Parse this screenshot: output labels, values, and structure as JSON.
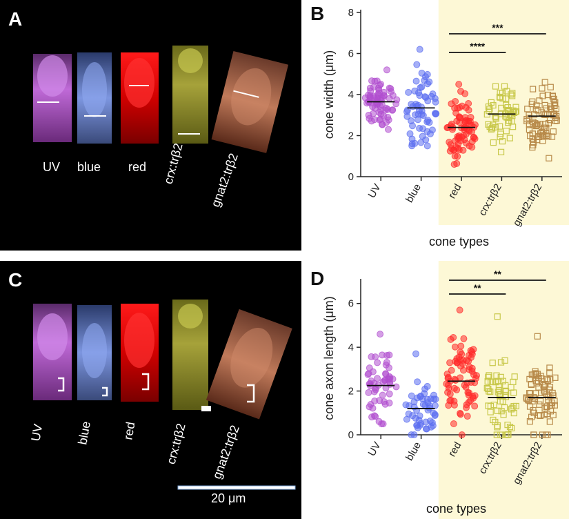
{
  "panels": {
    "A": {
      "letter": "A"
    },
    "B": {
      "letter": "B"
    },
    "C": {
      "letter": "C",
      "scale_bar_label": "20 μm"
    },
    "D": {
      "letter": "D"
    }
  },
  "image_labels": [
    "UV",
    "blue",
    "red",
    "crx:trβ2",
    "gnat2:trβ2"
  ],
  "colors": {
    "UV": "#b04fcf",
    "blue": "#5b6df0",
    "red": "#ff2a2a",
    "crx": "#c8c84a",
    "gnat2": "#b88a4a",
    "highlight": "#fdf8d6"
  },
  "chart_data": [
    {
      "type": "scatter",
      "panel": "B",
      "ylabel": "cone width  (μm)",
      "xlabel": "cone types",
      "categories": [
        "UV",
        "blue",
        "red",
        "crx:trβ2",
        "gnat2:trβ2"
      ],
      "ylim": [
        0,
        8
      ],
      "yticks": [
        0,
        2,
        4,
        6,
        8
      ],
      "means": [
        3.65,
        3.35,
        2.4,
        3.05,
        2.95
      ],
      "ranges": [
        [
          2.3,
          5.2
        ],
        [
          1.5,
          6.2
        ],
        [
          0.6,
          4.5
        ],
        [
          1.2,
          4.4
        ],
        [
          0.9,
          4.6
        ]
      ],
      "counts": [
        70,
        60,
        75,
        60,
        80
      ],
      "markers": [
        "circle-filled",
        "circle-filled",
        "circle-filled",
        "square-open",
        "square-open"
      ],
      "highlight_categories": [
        "red",
        "crx:trβ2",
        "gnat2:trβ2"
      ],
      "significance": [
        {
          "from": "red",
          "to": "crx:trβ2",
          "label": "****"
        },
        {
          "from": "red",
          "to": "gnat2:trβ2",
          "label": "***"
        }
      ]
    },
    {
      "type": "scatter",
      "panel": "D",
      "ylabel": "cone axon length (μm)",
      "xlabel": "cone types",
      "categories": [
        "UV",
        "blue",
        "red",
        "crx:trβ2",
        "gnat2:trβ2"
      ],
      "ylim": [
        0,
        7
      ],
      "yticks": [
        0,
        2,
        4,
        6
      ],
      "means": [
        2.25,
        1.2,
        2.45,
        1.7,
        1.7
      ],
      "ranges": [
        [
          0.5,
          4.6
        ],
        [
          0,
          3.7
        ],
        [
          0,
          5.7
        ],
        [
          0,
          5.4
        ],
        [
          0,
          4.5
        ]
      ],
      "counts": [
        55,
        50,
        75,
        60,
        75
      ],
      "markers": [
        "circle-filled",
        "circle-filled",
        "circle-filled",
        "square-open",
        "square-open"
      ],
      "highlight_categories": [
        "red",
        "crx:trβ2",
        "gnat2:trβ2"
      ],
      "significance": [
        {
          "from": "red",
          "to": "crx:trβ2",
          "label": "**"
        },
        {
          "from": "red",
          "to": "gnat2:trβ2",
          "label": "**"
        }
      ]
    }
  ]
}
